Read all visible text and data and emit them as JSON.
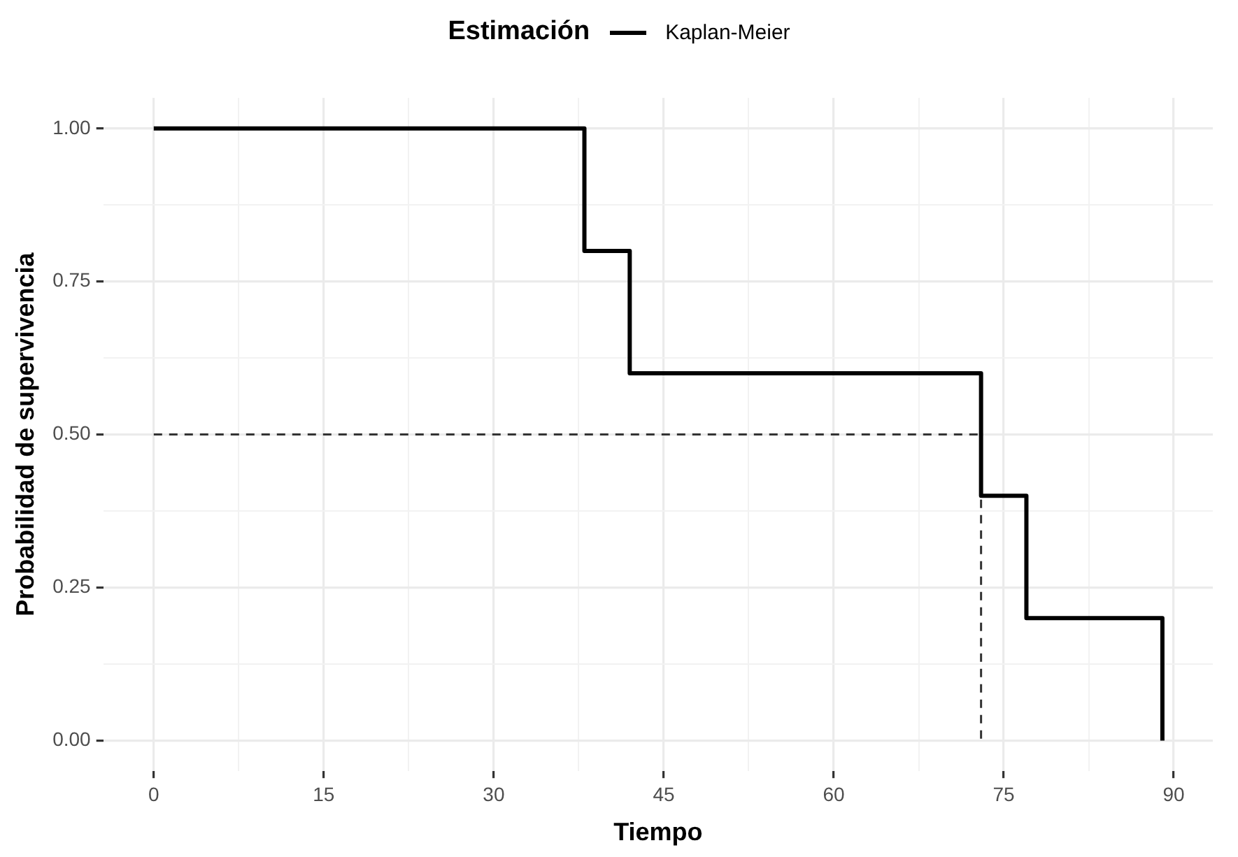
{
  "chart_data": {
    "type": "step",
    "xlabel": "Tiempo",
    "ylabel": "Probabilidad de supervivencia",
    "legend_title": "Estimación",
    "legend": "top",
    "grid": true,
    "xlim": [
      -4.45,
      93.45
    ],
    "ylim": [
      -0.05,
      1.05
    ],
    "xticks": [
      0,
      {
        "value": 7.5,
        "label": null
      },
      15,
      {
        "value": 22.5,
        "label": null
      },
      30,
      {
        "value": 37.5,
        "label": null
      },
      45,
      {
        "value": 52.5,
        "label": null
      },
      60,
      {
        "value": 67.5,
        "label": null
      },
      75,
      {
        "value": 82.5,
        "label": null
      },
      90
    ],
    "yticks": [
      {
        "value": 0,
        "label": "0.00"
      },
      {
        "value": 0.125,
        "label": null
      },
      {
        "value": 0.25,
        "label": "0.25"
      },
      {
        "value": 0.375,
        "label": null
      },
      {
        "value": 0.5,
        "label": "0.50"
      },
      {
        "value": 0.625,
        "label": null
      },
      {
        "value": 0.75,
        "label": "0.75"
      },
      {
        "value": 0.875,
        "label": null
      },
      {
        "value": 1,
        "label": "1.00"
      }
    ],
    "series": [
      {
        "name": "Kaplan-Meier",
        "color": "#000000",
        "x": [
          0,
          38,
          42,
          73,
          77,
          89
        ],
        "values": [
          1,
          0.8,
          0.6,
          0.4,
          0.2,
          0
        ]
      },
      {
        "type": "line",
        "line_style": "dashed",
        "color": "#333333",
        "x": [
          0,
          73,
          73
        ],
        "values": [
          0.5,
          0.5,
          0
        ]
      }
    ]
  }
}
